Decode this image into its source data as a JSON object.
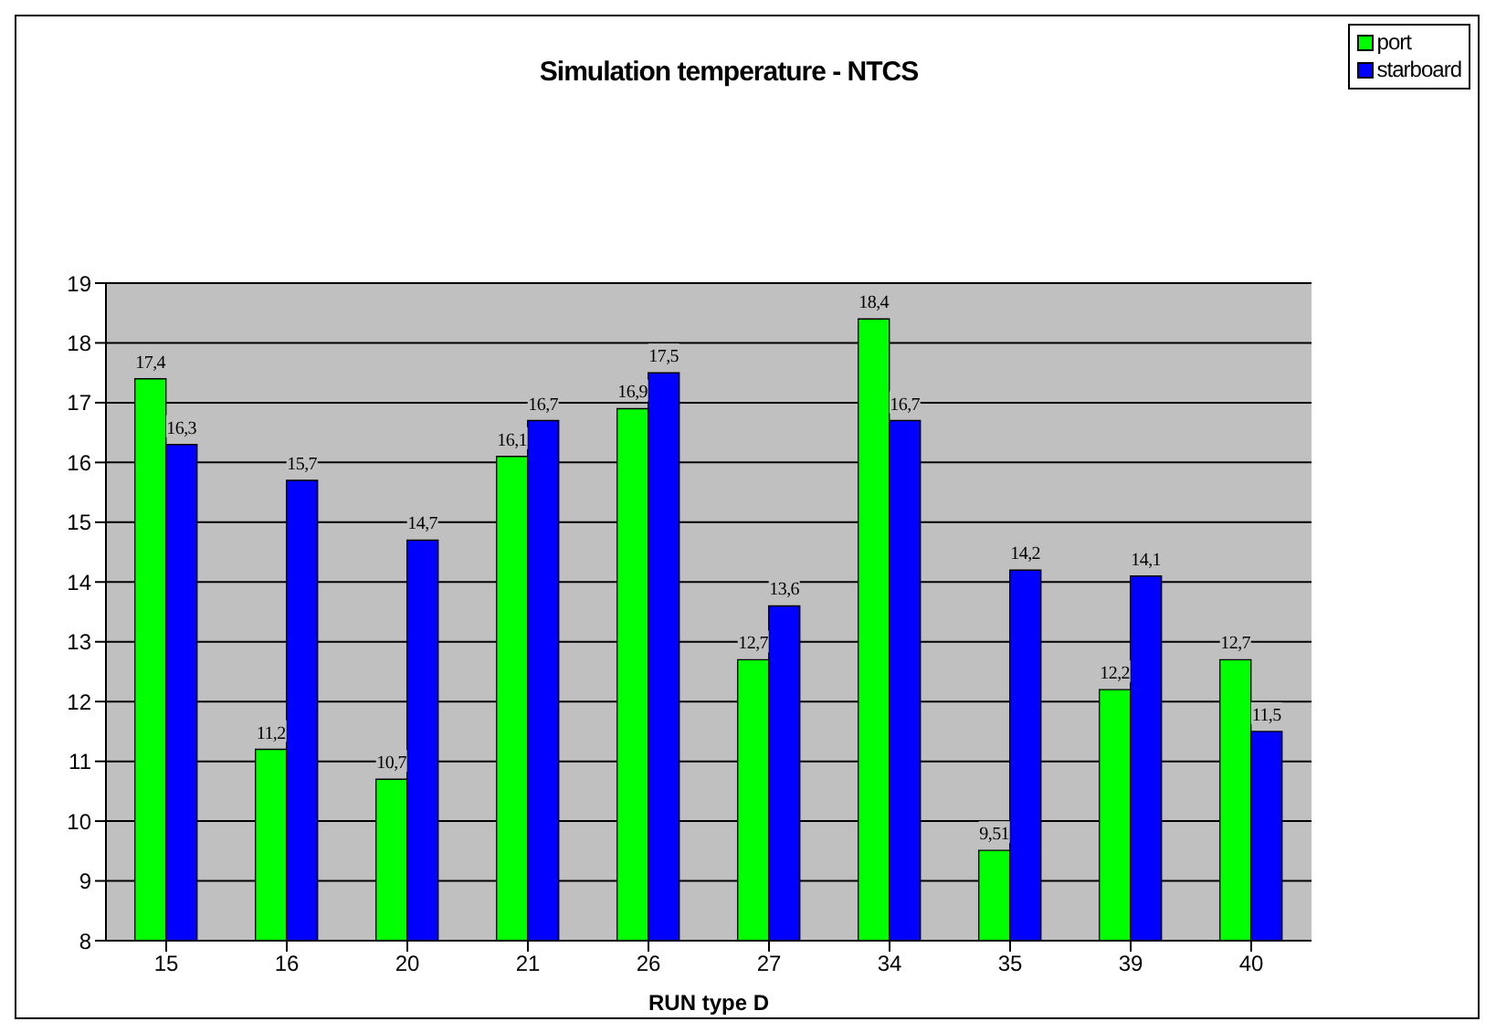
{
  "chart_data": {
    "type": "bar",
    "title": "Simulation temperature - NTCS",
    "xlabel": "RUN type D",
    "categories": [
      "15",
      "16",
      "20",
      "21",
      "26",
      "27",
      "34",
      "35",
      "39",
      "40"
    ],
    "series": [
      {
        "name": "port",
        "color": "#00ff00",
        "values": [
          17.4,
          11.2,
          10.7,
          16.1,
          16.9,
          12.7,
          18.4,
          9.51,
          12.2,
          12.7
        ],
        "value_labels": [
          "17,4",
          "11,2",
          "10,7",
          "16,1",
          "16,9",
          "12,7",
          "18,4",
          "9,51",
          "12,2",
          "12,7"
        ]
      },
      {
        "name": "starboard",
        "color": "#0000ff",
        "values": [
          16.3,
          15.7,
          14.7,
          16.7,
          17.5,
          13.6,
          16.7,
          14.2,
          14.1,
          11.5
        ],
        "value_labels": [
          "16,3",
          "15,7",
          "14,7",
          "16,7",
          "17,5",
          "13,6",
          "16,7",
          "14,2",
          "14,1",
          "11,5"
        ]
      }
    ],
    "ylim": [
      8,
      19
    ],
    "yticks": [
      8,
      9,
      10,
      11,
      12,
      13,
      14,
      15,
      16,
      17,
      18,
      19
    ],
    "grid": "y",
    "legend": "top right"
  }
}
